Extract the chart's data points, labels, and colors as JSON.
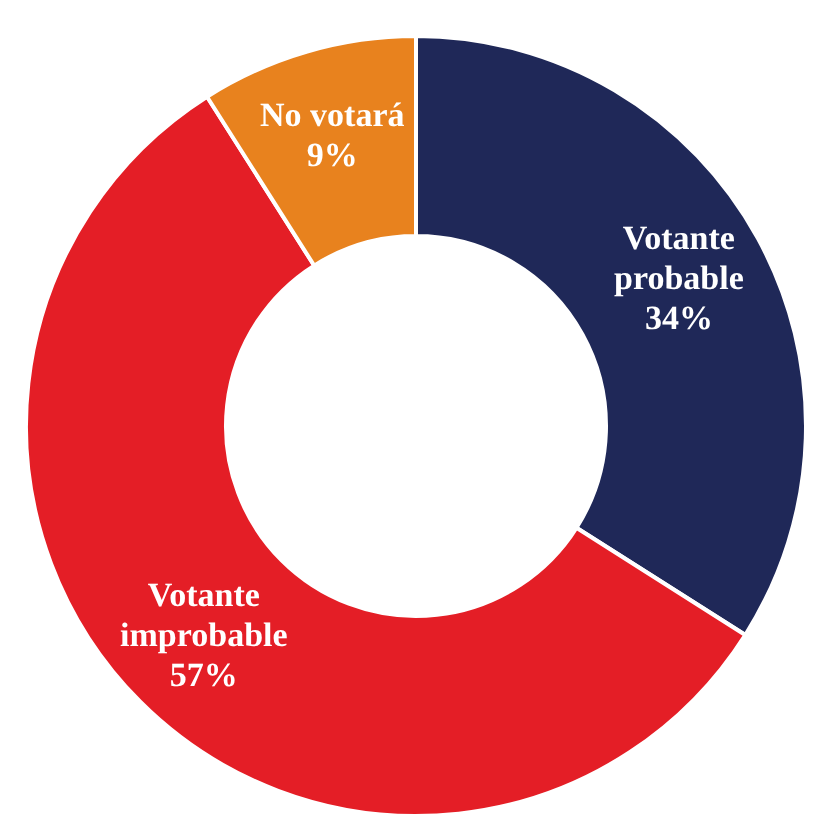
{
  "chart_data": {
    "type": "donut",
    "categories": [
      "Votante probable",
      "Votante improbable",
      "No votará"
    ],
    "values": [
      34,
      57,
      9
    ],
    "colors": [
      "#1f2858",
      "#e41e26",
      "#e8821e"
    ],
    "value_labels": [
      "34%",
      "57%",
      "9%"
    ]
  }
}
